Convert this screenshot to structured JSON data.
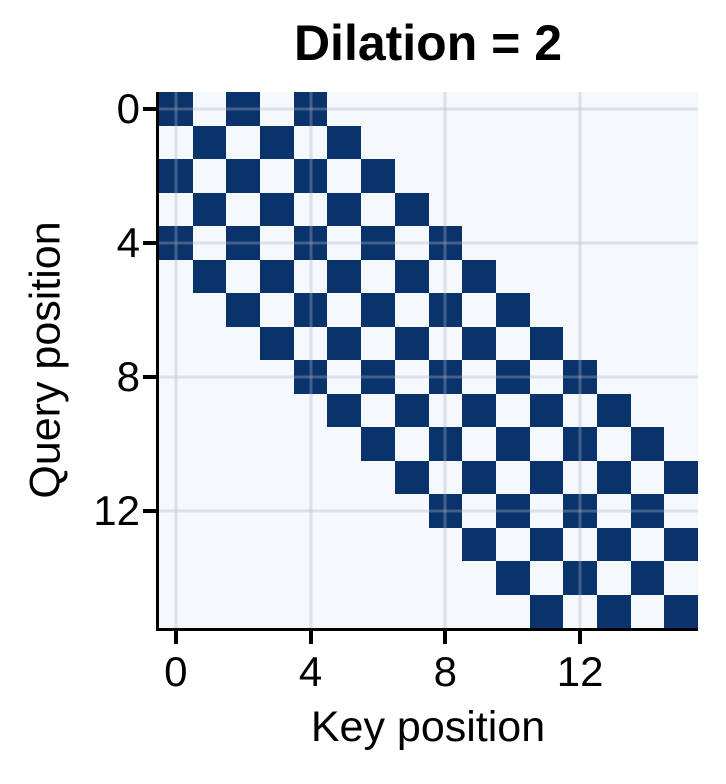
{
  "figure": {
    "title": "Dilation = 2"
  },
  "chart_data": {
    "type": "heatmap",
    "title": "Dilation = 2",
    "xlabel": "Key position",
    "ylabel": "Query position",
    "x_ticks": [
      0,
      4,
      8,
      12
    ],
    "y_ticks": [
      0,
      4,
      8,
      12
    ],
    "n_rows": 16,
    "n_cols": 16,
    "x_range": [
      0,
      15
    ],
    "y_range": [
      0,
      15
    ],
    "grid": true,
    "legend": false,
    "pattern_description": "cell(i,j)=1 iff |i-j|<=4 and (i-j) is even: dilated sliding-window attention mask, dilation 2, window +/-4",
    "colors": {
      "active_cell": "#0a336c",
      "inactive_cell": "#f5f8fc",
      "gridline": "#aeb6c0",
      "axis": "#000000",
      "text": "#000000"
    },
    "matrix": [
      [
        1,
        0,
        1,
        0,
        1,
        0,
        0,
        0,
        0,
        0,
        0,
        0,
        0,
        0,
        0,
        0
      ],
      [
        0,
        1,
        0,
        1,
        0,
        1,
        0,
        0,
        0,
        0,
        0,
        0,
        0,
        0,
        0,
        0
      ],
      [
        1,
        0,
        1,
        0,
        1,
        0,
        1,
        0,
        0,
        0,
        0,
        0,
        0,
        0,
        0,
        0
      ],
      [
        0,
        1,
        0,
        1,
        0,
        1,
        0,
        1,
        0,
        0,
        0,
        0,
        0,
        0,
        0,
        0
      ],
      [
        1,
        0,
        1,
        0,
        1,
        0,
        1,
        0,
        1,
        0,
        0,
        0,
        0,
        0,
        0,
        0
      ],
      [
        0,
        1,
        0,
        1,
        0,
        1,
        0,
        1,
        0,
        1,
        0,
        0,
        0,
        0,
        0,
        0
      ],
      [
        0,
        0,
        1,
        0,
        1,
        0,
        1,
        0,
        1,
        0,
        1,
        0,
        0,
        0,
        0,
        0
      ],
      [
        0,
        0,
        0,
        1,
        0,
        1,
        0,
        1,
        0,
        1,
        0,
        1,
        0,
        0,
        0,
        0
      ],
      [
        0,
        0,
        0,
        0,
        1,
        0,
        1,
        0,
        1,
        0,
        1,
        0,
        1,
        0,
        0,
        0
      ],
      [
        0,
        0,
        0,
        0,
        0,
        1,
        0,
        1,
        0,
        1,
        0,
        1,
        0,
        1,
        0,
        0
      ],
      [
        0,
        0,
        0,
        0,
        0,
        0,
        1,
        0,
        1,
        0,
        1,
        0,
        1,
        0,
        1,
        0
      ],
      [
        0,
        0,
        0,
        0,
        0,
        0,
        0,
        1,
        0,
        1,
        0,
        1,
        0,
        1,
        0,
        1
      ],
      [
        0,
        0,
        0,
        0,
        0,
        0,
        0,
        0,
        1,
        0,
        1,
        0,
        1,
        0,
        1,
        0
      ],
      [
        0,
        0,
        0,
        0,
        0,
        0,
        0,
        0,
        0,
        1,
        0,
        1,
        0,
        1,
        0,
        1
      ],
      [
        0,
        0,
        0,
        0,
        0,
        0,
        0,
        0,
        0,
        0,
        1,
        0,
        1,
        0,
        1,
        0
      ],
      [
        0,
        0,
        0,
        0,
        0,
        0,
        0,
        0,
        0,
        0,
        0,
        1,
        0,
        1,
        0,
        1
      ]
    ]
  }
}
